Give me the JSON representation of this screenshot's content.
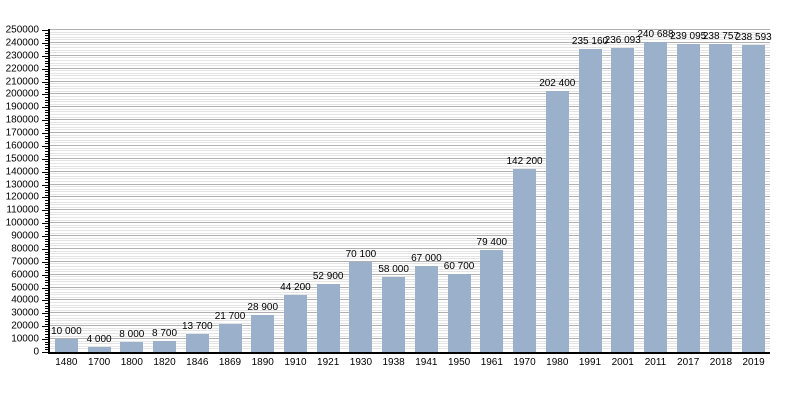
{
  "chart_data": {
    "type": "bar",
    "title": "",
    "xlabel": "",
    "ylabel": "",
    "categories": [
      "1480",
      "1700",
      "1800",
      "1820",
      "1846",
      "1869",
      "1890",
      "1910",
      "1921",
      "1930",
      "1938",
      "1941",
      "1950",
      "1961",
      "1970",
      "1980",
      "1991",
      "2001",
      "2011",
      "2017",
      "2018",
      "2019"
    ],
    "values": [
      10000,
      4000,
      8000,
      8700,
      13700,
      21700,
      28900,
      44200,
      52900,
      70100,
      58000,
      67000,
      60700,
      79400,
      142200,
      202400,
      235160,
      236093,
      240688,
      239095,
      238757,
      238593
    ],
    "value_labels": [
      "10 000",
      "4 000",
      "8 000",
      "8 700",
      "13 700",
      "21 700",
      "28 900",
      "44 200",
      "52 900",
      "70 100",
      "58 000",
      "67 000",
      "60 700",
      "79 400",
      "142 200",
      "202 400",
      "235 160",
      "236 093",
      "240 688",
      "239 095",
      "238 757",
      "238 593"
    ],
    "ylim": [
      0,
      250000
    ],
    "y_major_step": 10000,
    "y_minor_step": 2000,
    "y_tick_labels": [
      "0",
      "10000",
      "20000",
      "30000",
      "40000",
      "50000",
      "60000",
      "70000",
      "80000",
      "90000",
      "100000",
      "110000",
      "120000",
      "130000",
      "140000",
      "150000",
      "160000",
      "170000",
      "180000",
      "190000",
      "200000",
      "210000",
      "220000",
      "230000",
      "240000",
      "250000"
    ],
    "grid": "horizontal major+minor",
    "legend": "none",
    "colors": {
      "bar": "#9BB0CB",
      "grid_major": "#b0b0b0",
      "grid_minor": "#e4e4e4",
      "axis": "#000000",
      "text": "#000000",
      "background": "#ffffff"
    }
  }
}
